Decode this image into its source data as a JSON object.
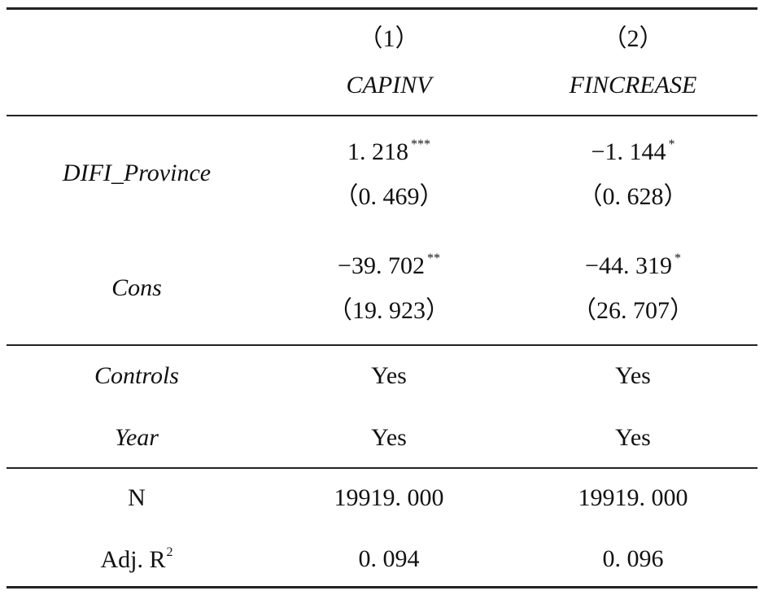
{
  "header": {
    "columns": [
      {
        "number": "（1）",
        "name": "CAPINV"
      },
      {
        "number": "（2）",
        "name": "FINCREASE"
      }
    ]
  },
  "table": {
    "coef_rows": [
      {
        "label": "DIFI_Province",
        "cells": [
          {
            "coef": "1. 218",
            "stars": "***",
            "se": "（0. 469）"
          },
          {
            "coef": "−1. 144",
            "stars": "*",
            "se": "（0. 628）"
          }
        ]
      },
      {
        "label": "Cons",
        "cells": [
          {
            "coef": "−39. 702",
            "stars": "**",
            "se": "（19. 923）"
          },
          {
            "coef": "−44. 319",
            "stars": "*",
            "se": "（26. 707）"
          }
        ]
      }
    ],
    "fixed_rows": [
      {
        "label": "Controls",
        "cells": [
          "Yes",
          "Yes"
        ]
      },
      {
        "label": "Year",
        "cells": [
          "Yes",
          "Yes"
        ]
      }
    ],
    "stat_rows": [
      {
        "label": "N",
        "cells": [
          "19919. 000",
          "19919. 000"
        ]
      },
      {
        "label": "Adj. R",
        "label_sup": "2",
        "cells": [
          "0. 094",
          "0. 096"
        ]
      }
    ]
  }
}
